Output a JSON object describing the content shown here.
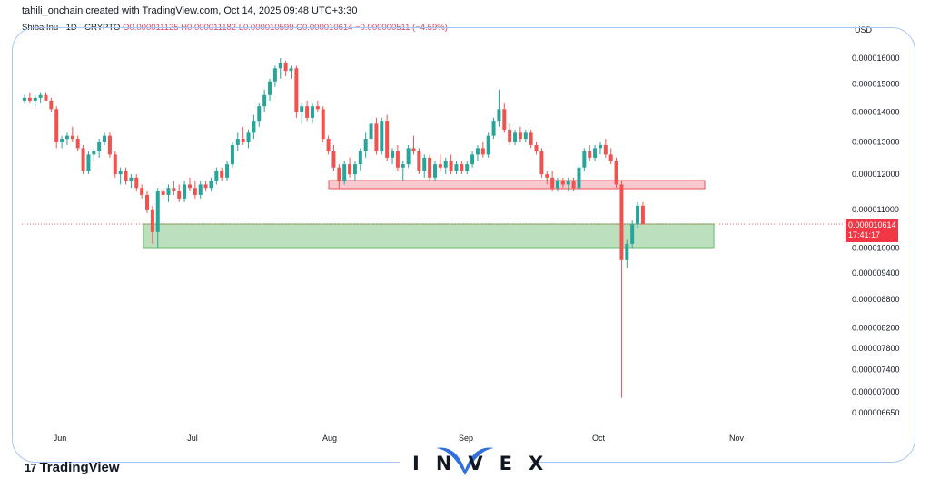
{
  "header": {
    "credit": "tahili_onchain created with TradingView.com, Oct 14, 2025 09:48 UTC+3:30"
  },
  "symbol": {
    "name": "Shiba Inu · 1D · CRYPTO",
    "ohlc": "O0.000011125 H0.000011182 L0.000010599 C0.000010614 −0.000000511 (−4.59%)"
  },
  "currency": "USD",
  "last_price": {
    "value": "0.000010614",
    "countdown": "17:41:17",
    "color": "#f23645"
  },
  "branding": {
    "tradingview": "TradingView",
    "tv_mark": "17",
    "invex": "INVEX"
  },
  "colors": {
    "up": "#26a69a",
    "down": "#ef5350",
    "support_zone": "#a5d6a7",
    "resistance_zone": "#f8bbc4"
  },
  "chart_data": {
    "type": "candlestick",
    "interval": "1D",
    "y_axis_ticks": [
      "0.000016000",
      "0.000015000",
      "0.000014000",
      "0.000013000",
      "0.000012000",
      "0.000011000",
      "0.000010000",
      "0.000009400",
      "0.000008800",
      "0.000008200",
      "0.000007800",
      "0.000007400",
      "0.000007000",
      "0.000006650"
    ],
    "y_axis_scale": "log",
    "x_axis_labels": [
      "Jun",
      "Jul",
      "Aug",
      "Sep",
      "Oct",
      "Nov"
    ],
    "zones": [
      {
        "type": "resistance",
        "from": "2025-07-30",
        "to": "2025-10-20",
        "low": 1.15e-05,
        "high": 1.17e-05
      },
      {
        "type": "support",
        "from": "2025-06-20",
        "to": "2025-10-21",
        "low": 1e-05,
        "high": 1.06e-05
      }
    ],
    "candles": [
      [
        1.44e-05,
        1.46e-05,
        1.43e-05,
        1.45e-05
      ],
      [
        1.45e-05,
        1.47e-05,
        1.43e-05,
        1.44e-05
      ],
      [
        1.44e-05,
        1.46e-05,
        1.42e-05,
        1.45e-05
      ],
      [
        1.45e-05,
        1.47e-05,
        1.43e-05,
        1.46e-05
      ],
      [
        1.46e-05,
        1.47e-05,
        1.44e-05,
        1.44e-05
      ],
      [
        1.44e-05,
        1.45e-05,
        1.4e-05,
        1.41e-05
      ],
      [
        1.41e-05,
        1.42e-05,
        1.28e-05,
        1.3e-05
      ],
      [
        1.3e-05,
        1.32e-05,
        1.28e-05,
        1.31e-05
      ],
      [
        1.31e-05,
        1.33e-05,
        1.29e-05,
        1.32e-05
      ],
      [
        1.32e-05,
        1.35e-05,
        1.3e-05,
        1.31e-05
      ],
      [
        1.31e-05,
        1.32e-05,
        1.27e-05,
        1.28e-05
      ],
      [
        1.28e-05,
        1.29e-05,
        1.2e-05,
        1.21e-05
      ],
      [
        1.21e-05,
        1.27e-05,
        1.2e-05,
        1.26e-05
      ],
      [
        1.26e-05,
        1.28e-05,
        1.24e-05,
        1.27e-05
      ],
      [
        1.27e-05,
        1.31e-05,
        1.25e-05,
        1.3e-05
      ],
      [
        1.3e-05,
        1.33e-05,
        1.29e-05,
        1.32e-05
      ],
      [
        1.32e-05,
        1.33e-05,
        1.25e-05,
        1.26e-05
      ],
      [
        1.26e-05,
        1.27e-05,
        1.19e-05,
        1.2e-05
      ],
      [
        1.2e-05,
        1.22e-05,
        1.17e-05,
        1.21e-05
      ],
      [
        1.21e-05,
        1.22e-05,
        1.17e-05,
        1.18e-05
      ],
      [
        1.18e-05,
        1.2e-05,
        1.16e-05,
        1.19e-05
      ],
      [
        1.19e-05,
        1.2e-05,
        1.15e-05,
        1.16e-05
      ],
      [
        1.16e-05,
        1.17e-05,
        1.13e-05,
        1.14e-05
      ],
      [
        1.14e-05,
        1.15e-05,
        1.09e-05,
        1.1e-05
      ],
      [
        1.1e-05,
        1.11e-05,
        1.01e-05,
        1.04e-05
      ],
      [
        1.04e-05,
        1.16e-05,
        1e-05,
        1.15e-05
      ],
      [
        1.15e-05,
        1.16e-05,
        1.13e-05,
        1.14e-05
      ],
      [
        1.14e-05,
        1.17e-05,
        1.12e-05,
        1.16e-05
      ],
      [
        1.16e-05,
        1.18e-05,
        1.14e-05,
        1.15e-05
      ],
      [
        1.15e-05,
        1.17e-05,
        1.12e-05,
        1.13e-05
      ],
      [
        1.13e-05,
        1.18e-05,
        1.12e-05,
        1.17e-05
      ],
      [
        1.17e-05,
        1.19e-05,
        1.15e-05,
        1.16e-05
      ],
      [
        1.16e-05,
        1.18e-05,
        1.13e-05,
        1.14e-05
      ],
      [
        1.14e-05,
        1.18e-05,
        1.13e-05,
        1.17e-05
      ],
      [
        1.17e-05,
        1.18e-05,
        1.15e-05,
        1.16e-05
      ],
      [
        1.16e-05,
        1.19e-05,
        1.15e-05,
        1.18e-05
      ],
      [
        1.18e-05,
        1.22e-05,
        1.17e-05,
        1.21e-05
      ],
      [
        1.21e-05,
        1.22e-05,
        1.18e-05,
        1.19e-05
      ],
      [
        1.19e-05,
        1.24e-05,
        1.18e-05,
        1.23e-05
      ],
      [
        1.23e-05,
        1.3e-05,
        1.22e-05,
        1.29e-05
      ],
      [
        1.29e-05,
        1.33e-05,
        1.27e-05,
        1.31e-05
      ],
      [
        1.31e-05,
        1.35e-05,
        1.29e-05,
        1.3e-05
      ],
      [
        1.3e-05,
        1.34e-05,
        1.28e-05,
        1.33e-05
      ],
      [
        1.33e-05,
        1.39e-05,
        1.31e-05,
        1.37e-05
      ],
      [
        1.37e-05,
        1.43e-05,
        1.35e-05,
        1.42e-05
      ],
      [
        1.42e-05,
        1.48e-05,
        1.4e-05,
        1.46e-05
      ],
      [
        1.46e-05,
        1.52e-05,
        1.44e-05,
        1.51e-05
      ],
      [
        1.51e-05,
        1.57e-05,
        1.49e-05,
        1.56e-05
      ],
      [
        1.56e-05,
        1.6e-05,
        1.52e-05,
        1.58e-05
      ],
      [
        1.58e-05,
        1.59e-05,
        1.53e-05,
        1.55e-05
      ],
      [
        1.55e-05,
        1.57e-05,
        1.52e-05,
        1.56e-05
      ],
      [
        1.56e-05,
        1.57e-05,
        1.38e-05,
        1.4e-05
      ],
      [
        1.4e-05,
        1.43e-05,
        1.36e-05,
        1.42e-05
      ],
      [
        1.42e-05,
        1.44e-05,
        1.37e-05,
        1.38e-05
      ],
      [
        1.38e-05,
        1.43e-05,
        1.36e-05,
        1.42e-05
      ],
      [
        1.42e-05,
        1.44e-05,
        1.4e-05,
        1.41e-05
      ],
      [
        1.41e-05,
        1.42e-05,
        1.3e-05,
        1.31e-05
      ],
      [
        1.31e-05,
        1.32e-05,
        1.26e-05,
        1.27e-05
      ],
      [
        1.27e-05,
        1.29e-05,
        1.21e-05,
        1.22e-05
      ],
      [
        1.22e-05,
        1.23e-05,
        1.16e-05,
        1.18e-05
      ],
      [
        1.18e-05,
        1.24e-05,
        1.17e-05,
        1.23e-05
      ],
      [
        1.23e-05,
        1.25e-05,
        1.19e-05,
        1.2e-05
      ],
      [
        1.2e-05,
        1.24e-05,
        1.18e-05,
        1.23e-05
      ],
      [
        1.23e-05,
        1.28e-05,
        1.21e-05,
        1.27e-05
      ],
      [
        1.27e-05,
        1.33e-05,
        1.25e-05,
        1.31e-05
      ],
      [
        1.31e-05,
        1.38e-05,
        1.29e-05,
        1.36e-05
      ],
      [
        1.36e-05,
        1.38e-05,
        1.26e-05,
        1.27e-05
      ],
      [
        1.27e-05,
        1.38e-05,
        1.26e-05,
        1.37e-05
      ],
      [
        1.37e-05,
        1.39e-05,
        1.24e-05,
        1.25e-05
      ],
      [
        1.25e-05,
        1.28e-05,
        1.23e-05,
        1.27e-05
      ],
      [
        1.27e-05,
        1.29e-05,
        1.21e-05,
        1.22e-05
      ],
      [
        1.22e-05,
        1.24e-05,
        1.18e-05,
        1.23e-05
      ],
      [
        1.23e-05,
        1.29e-05,
        1.22e-05,
        1.28e-05
      ],
      [
        1.28e-05,
        1.32e-05,
        1.26e-05,
        1.27e-05
      ],
      [
        1.27e-05,
        1.28e-05,
        1.2e-05,
        1.21e-05
      ],
      [
        1.21e-05,
        1.26e-05,
        1.19e-05,
        1.25e-05
      ],
      [
        1.25e-05,
        1.26e-05,
        1.18e-05,
        1.19e-05
      ],
      [
        1.19e-05,
        1.24e-05,
        1.18e-05,
        1.23e-05
      ],
      [
        1.23e-05,
        1.26e-05,
        1.21e-05,
        1.22e-05
      ],
      [
        1.22e-05,
        1.25e-05,
        1.2e-05,
        1.24e-05
      ],
      [
        1.24e-05,
        1.26e-05,
        1.2e-05,
        1.21e-05
      ],
      [
        1.21e-05,
        1.24e-05,
        1.2e-05,
        1.23e-05
      ],
      [
        1.23e-05,
        1.24e-05,
        1.2e-05,
        1.21e-05
      ],
      [
        1.21e-05,
        1.24e-05,
        1.2e-05,
        1.23e-05
      ],
      [
        1.23e-05,
        1.27e-05,
        1.22e-05,
        1.26e-05
      ],
      [
        1.26e-05,
        1.29e-05,
        1.24e-05,
        1.28e-05
      ],
      [
        1.28e-05,
        1.3e-05,
        1.25e-05,
        1.26e-05
      ],
      [
        1.26e-05,
        1.33e-05,
        1.25e-05,
        1.32e-05
      ],
      [
        1.32e-05,
        1.38e-05,
        1.31e-05,
        1.37e-05
      ],
      [
        1.37e-05,
        1.48e-05,
        1.35e-05,
        1.41e-05
      ],
      [
        1.41e-05,
        1.43e-05,
        1.33e-05,
        1.34e-05
      ],
      [
        1.34e-05,
        1.36e-05,
        1.29e-05,
        1.3e-05
      ],
      [
        1.3e-05,
        1.34e-05,
        1.29e-05,
        1.33e-05
      ],
      [
        1.33e-05,
        1.35e-05,
        1.3e-05,
        1.31e-05
      ],
      [
        1.31e-05,
        1.34e-05,
        1.3e-05,
        1.33e-05
      ],
      [
        1.33e-05,
        1.34e-05,
        1.28e-05,
        1.29e-05
      ],
      [
        1.29e-05,
        1.3e-05,
        1.26e-05,
        1.27e-05
      ],
      [
        1.27e-05,
        1.28e-05,
        1.19e-05,
        1.2e-05
      ],
      [
        1.2e-05,
        1.21e-05,
        1.17e-05,
        1.19e-05
      ],
      [
        1.19e-05,
        1.21e-05,
        1.15e-05,
        1.16e-05
      ],
      [
        1.16e-05,
        1.19e-05,
        1.15e-05,
        1.18e-05
      ],
      [
        1.18e-05,
        1.19e-05,
        1.16e-05,
        1.17e-05
      ],
      [
        1.17e-05,
        1.19e-05,
        1.15e-05,
        1.18e-05
      ],
      [
        1.18e-05,
        1.19e-05,
        1.15e-05,
        1.16e-05
      ],
      [
        1.16e-05,
        1.23e-05,
        1.15e-05,
        1.22e-05
      ],
      [
        1.22e-05,
        1.28e-05,
        1.21e-05,
        1.27e-05
      ],
      [
        1.27e-05,
        1.29e-05,
        1.24e-05,
        1.25e-05
      ],
      [
        1.25e-05,
        1.29e-05,
        1.24e-05,
        1.28e-05
      ],
      [
        1.28e-05,
        1.3e-05,
        1.26e-05,
        1.29e-05
      ],
      [
        1.29e-05,
        1.31e-05,
        1.25e-05,
        1.26e-05
      ],
      [
        1.26e-05,
        1.28e-05,
        1.23e-05,
        1.24e-05
      ],
      [
        1.24e-05,
        1.25e-05,
        1.16e-05,
        1.17e-05
      ],
      [
        1.17e-05,
        1.18e-05,
        6.9e-06,
        9.7e-06
      ],
      [
        9.7e-06,
        1.02e-05,
        9.5e-06,
        1.01e-05
      ],
      [
        1.01e-05,
        1.07e-05,
        1e-05,
        1.06e-05
      ],
      [
        1.06e-05,
        1.12e-05,
        1.05e-05,
        1.11e-05
      ],
      [
        1.11e-05,
        1.12e-05,
        1.06e-05,
        1.06e-05
      ]
    ]
  }
}
